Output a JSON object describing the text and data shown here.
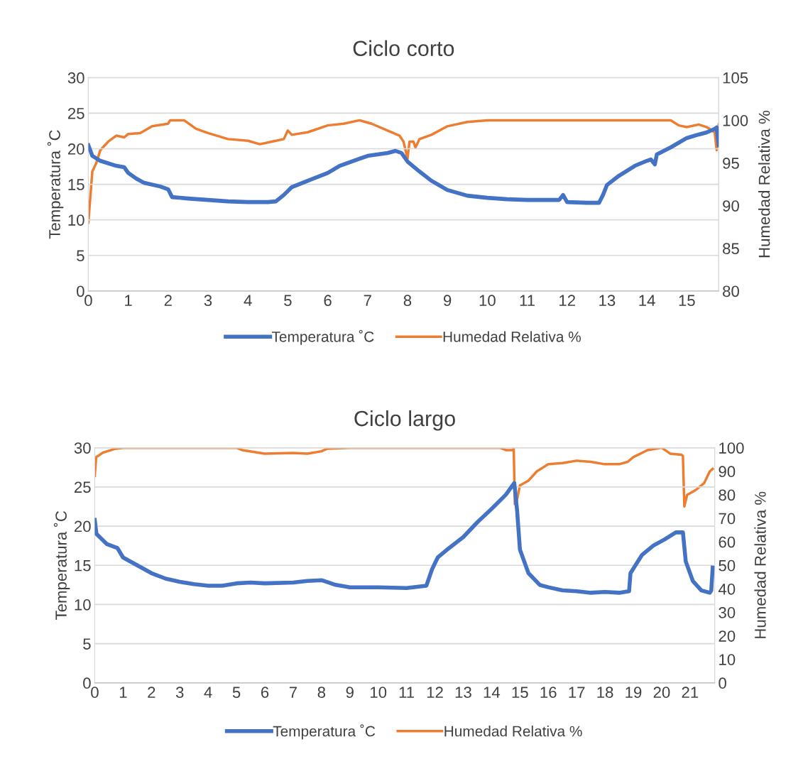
{
  "chart_data": [
    {
      "type": "line",
      "title": "Ciclo corto",
      "ylabel": "Temperatura ˚C",
      "y2label": "Humedad Relativa %",
      "xlim": [
        0,
        15.8
      ],
      "xticks": [
        0,
        1,
        2,
        3,
        4,
        5,
        6,
        7,
        8,
        9,
        10,
        11,
        12,
        13,
        14,
        15
      ],
      "ylim": [
        0,
        30
      ],
      "yticks": [
        0,
        5,
        10,
        15,
        20,
        25,
        30
      ],
      "y2lim": [
        80,
        105
      ],
      "y2ticks": [
        80,
        85,
        90,
        95,
        100,
        105
      ],
      "grid": "y",
      "legend": "bottom",
      "series": [
        {
          "name": "Temperatura ˚C",
          "color": "#4472c4",
          "axis": "y",
          "x": [
            0,
            0.1,
            0.3,
            0.7,
            0.9,
            1.0,
            1.2,
            1.4,
            1.8,
            2.0,
            2.1,
            2.5,
            3,
            3.5,
            4,
            4.5,
            4.7,
            4.9,
            5.1,
            5.5,
            6,
            6.3,
            7,
            7.5,
            7.7,
            7.85,
            8,
            8.3,
            8.6,
            9,
            9.5,
            10,
            10.5,
            11,
            11.5,
            11.8,
            11.9,
            12.0,
            12.5,
            12.8,
            12.9,
            13.0,
            13.3,
            13.7,
            14.0,
            14.1,
            14.2,
            14.25,
            14.6,
            15,
            15.3,
            15.5,
            15.7,
            15.75,
            15.8
          ],
          "values": [
            20.5,
            19,
            18.3,
            17.6,
            17.4,
            16.6,
            15.8,
            15.2,
            14.7,
            14.3,
            13.2,
            13.0,
            12.8,
            12.6,
            12.5,
            12.5,
            12.6,
            13.5,
            14.6,
            15.5,
            16.6,
            17.6,
            19,
            19.4,
            19.7,
            19.4,
            18.2,
            16.8,
            15.5,
            14.2,
            13.4,
            13.1,
            12.9,
            12.8,
            12.8,
            12.8,
            13.5,
            12.5,
            12.4,
            12.4,
            13.5,
            14.9,
            16.2,
            17.6,
            18.3,
            18.5,
            17.8,
            19.2,
            20.2,
            21.5,
            22,
            22.3,
            22.8,
            23.0,
            20.5
          ]
        },
        {
          "name": "Humedad Relativa %",
          "color": "#ed7d31",
          "axis": "y2",
          "x": [
            0,
            0.05,
            0.1,
            0.2,
            0.3,
            0.5,
            0.7,
            0.9,
            1.0,
            1.3,
            1.6,
            2,
            2.05,
            2.4,
            2.7,
            3,
            3.5,
            4,
            4.3,
            4.6,
            4.9,
            5.0,
            5.1,
            5.5,
            6,
            6.4,
            6.8,
            7.1,
            7.5,
            7.8,
            7.9,
            8.0,
            8.05,
            8.15,
            8.2,
            8.3,
            8.6,
            9,
            9.5,
            10,
            14.6,
            14.8,
            15,
            15.3,
            15.5,
            15.7,
            15.75,
            15.8
          ],
          "values": [
            88,
            91,
            94,
            95,
            96.5,
            97.5,
            98.2,
            98,
            98.4,
            98.5,
            99.3,
            99.6,
            100,
            100,
            99,
            98.5,
            97.8,
            97.6,
            97.2,
            97.5,
            97.8,
            98.8,
            98.3,
            98.6,
            99.4,
            99.6,
            100,
            99.6,
            98.8,
            98.2,
            97.5,
            95.5,
            97.5,
            97.5,
            96.8,
            97.8,
            98.3,
            99.3,
            99.8,
            100,
            100,
            99.4,
            99.2,
            99.5,
            99.2,
            98.6,
            96.5,
            99.5
          ]
        }
      ]
    },
    {
      "type": "line",
      "title": "Ciclo largo",
      "ylabel": "Temperatura ˚C",
      "y2label": "Humedad Relativa %",
      "xlim": [
        0,
        21.87
      ],
      "xticks": [
        0,
        1,
        2,
        3,
        4,
        5,
        6,
        7,
        8,
        9,
        10,
        11,
        12,
        13,
        14,
        15,
        16,
        17,
        18,
        19,
        20,
        21
      ],
      "ylim": [
        0,
        30
      ],
      "yticks": [
        0,
        5,
        10,
        15,
        20,
        25,
        30
      ],
      "y2lim": [
        0,
        100
      ],
      "y2ticks": [
        0,
        10,
        20,
        30,
        40,
        50,
        60,
        70,
        80,
        90,
        100
      ],
      "grid": "y",
      "legend": "bottom",
      "series": [
        {
          "name": "Temperatura ˚C",
          "color": "#4472c4",
          "axis": "y",
          "x": [
            0,
            0.06,
            0.43,
            0.8,
            1,
            1.5,
            2,
            2.5,
            3,
            3.5,
            4,
            4.5,
            5,
            5.5,
            6,
            7,
            7.5,
            8,
            8.5,
            9,
            10,
            11,
            11.7,
            11.9,
            12.1,
            12.5,
            13,
            13.5,
            14,
            14.5,
            14.8,
            14.9,
            15.0,
            15.3,
            15.7,
            16,
            16.5,
            17,
            17.5,
            18,
            18.5,
            18.85,
            18.9,
            19.3,
            19.7,
            20.1,
            20.5,
            20.75,
            20.85,
            21.1,
            21.4,
            21.7,
            21.75,
            21.8
          ],
          "values": [
            20.8,
            19.0,
            17.7,
            17.2,
            16,
            15,
            14,
            13.3,
            12.9,
            12.6,
            12.4,
            12.4,
            12.7,
            12.8,
            12.7,
            12.8,
            13,
            13.1,
            12.5,
            12.2,
            12.2,
            12.1,
            12.4,
            14.5,
            16,
            17.2,
            18.6,
            20.5,
            22.2,
            24,
            25.5,
            22,
            17,
            14,
            12.5,
            12.2,
            11.8,
            11.7,
            11.5,
            11.6,
            11.5,
            11.7,
            14,
            16.3,
            17.5,
            18.3,
            19.2,
            19.2,
            15.5,
            13,
            11.8,
            11.5,
            11.8,
            14.7
          ]
        },
        {
          "name": "Humedad Relativa %",
          "color": "#ed7d31",
          "axis": "y2",
          "x": [
            0,
            0.05,
            0.3,
            0.7,
            1,
            5,
            5.2,
            6,
            7,
            7.5,
            8,
            8.2,
            9,
            14.3,
            14.5,
            14.75,
            14.78,
            14.82,
            14.9,
            15.0,
            15.3,
            15.6,
            16,
            16.5,
            17,
            17.5,
            18,
            18.5,
            18.8,
            19,
            19.5,
            20,
            20.3,
            20.7,
            20.75,
            20.8,
            20.9,
            21.2,
            21.5,
            21.7,
            21.8
          ],
          "values": [
            88,
            96,
            98,
            99.5,
            100,
            100,
            99,
            97.5,
            97.8,
            97.5,
            98.5,
            99.6,
            100,
            100,
            99,
            99,
            100,
            76,
            78,
            84,
            86,
            90,
            93,
            93.5,
            94.5,
            94,
            93,
            93,
            94,
            96,
            99,
            100,
            97.5,
            97,
            96.5,
            75,
            80,
            82,
            85,
            90,
            91
          ]
        }
      ]
    }
  ]
}
